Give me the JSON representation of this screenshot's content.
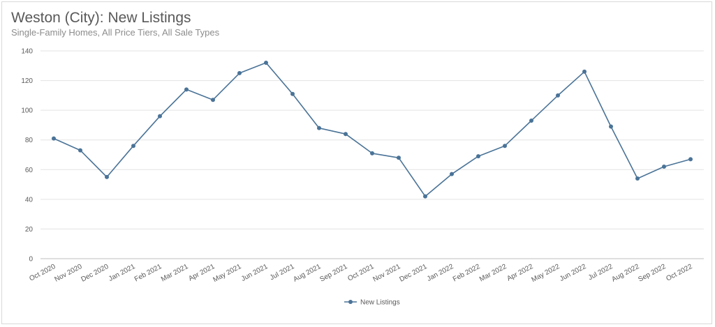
{
  "chart_data": {
    "type": "line",
    "title": "Weston (City): New Listings",
    "subtitle": "Single-Family Homes, All Price Tiers, All Sale Types",
    "xlabel": "",
    "ylabel": "",
    "ylim": [
      0,
      140
    ],
    "yticks": [
      0,
      20,
      40,
      60,
      80,
      100,
      120,
      140
    ],
    "grid": true,
    "legend_position": "bottom-center",
    "categories": [
      "Oct 2020",
      "Nov 2020",
      "Dec 2020",
      "Jan 2021",
      "Feb 2021",
      "Mar 2021",
      "Apr 2021",
      "May 2021",
      "Jun 2021",
      "Jul 2021",
      "Aug 2021",
      "Sep 2021",
      "Oct 2021",
      "Nov 2021",
      "Dec 2021",
      "Jan 2022",
      "Feb 2022",
      "Mar 2022",
      "Apr 2022",
      "May 2022",
      "Jun 2022",
      "Jul 2022",
      "Aug 2022",
      "Sep 2022",
      "Oct 2022"
    ],
    "series": [
      {
        "name": "New Listings",
        "color": "#4a7397",
        "values": [
          81,
          73,
          55,
          76,
          96,
          114,
          107,
          125,
          132,
          111,
          88,
          84,
          71,
          68,
          42,
          57,
          69,
          76,
          93,
          110,
          126,
          89,
          54,
          62,
          67
        ]
      }
    ]
  }
}
